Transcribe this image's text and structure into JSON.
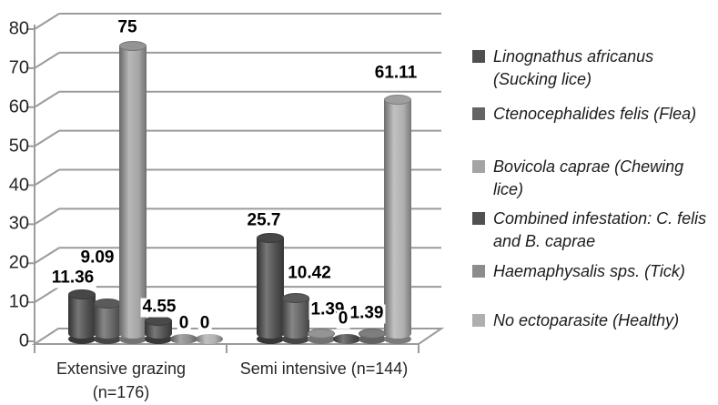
{
  "chart_data": {
    "type": "bar",
    "subtype": "3d-cylinder",
    "title": "",
    "xlabel": "",
    "ylabel": "",
    "ylim": [
      0,
      80
    ],
    "y_ticks": [
      "0",
      "10",
      "20",
      "30",
      "40",
      "50",
      "60",
      "70",
      "80"
    ],
    "grid": true,
    "legend_position": "right",
    "background_color": "#FFFFFF",
    "gridline_color": "#9B9B9B",
    "axis_color": "#9B9B9B",
    "categories": [
      "Extensive grazing\n(n=176)",
      "Semi intensive (n=144)"
    ],
    "series": [
      {
        "name": "Linognathus africanus (Sucking lice)",
        "legend_label": "Linognathus africanus\n(Sucking lice)",
        "color": "#4F4F4F",
        "values": [
          11.36,
          25.7
        ]
      },
      {
        "name": "Ctenocephalides felis (Flea)",
        "legend_label": "Ctenocephalides felis (Flea)",
        "color": "#646464",
        "values": [
          9.09,
          10.42
        ]
      },
      {
        "name": "Bovicola caprae (Chewing lice)",
        "legend_label": "Bovicola caprae (Chewing lice)",
        "color": "#A4A4A4",
        "values": [
          75,
          1.39
        ]
      },
      {
        "name": "Combined infestation: C. felis and B. caprae",
        "legend_label": "Combined infestation: C. felis\nand B. caprae",
        "color": "#515151",
        "values": [
          4.55,
          0
        ]
      },
      {
        "name": "Haemaphysalis sps. (Tick)",
        "legend_label": "Haemaphysalis sps. (Tick)",
        "color": "#8C8C8C",
        "values": [
          0,
          1.39
        ]
      },
      {
        "name": "No ectoparasite (Healthy)",
        "legend_label": "No ectoparasite (Healthy)",
        "color": "#AFAFAF",
        "values": [
          0,
          61.11
        ]
      }
    ],
    "value_labels": [
      [
        "11.36",
        "9.09",
        "75",
        "4.55",
        "0",
        "0"
      ],
      [
        "25.7",
        "10.42",
        "1.39",
        "0",
        "1.39",
        "61.11"
      ]
    ]
  }
}
